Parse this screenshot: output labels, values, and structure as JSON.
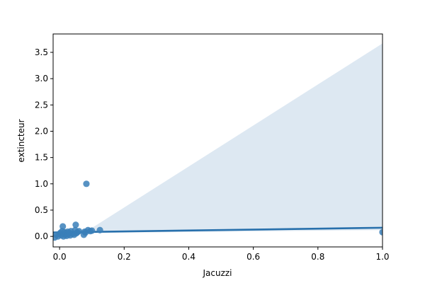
{
  "chart_data": {
    "type": "scatter",
    "title": "",
    "xlabel": "Jacuzzi",
    "ylabel": "extincteur",
    "xlim": [
      -0.02,
      1.0
    ],
    "ylim": [
      -0.2,
      3.85
    ],
    "xticks": [
      0.0,
      0.2,
      0.4,
      0.6,
      0.8,
      1.0
    ],
    "xtick_labels": [
      "0.0",
      "0.2",
      "0.4",
      "0.6",
      "0.8",
      "1.0"
    ],
    "yticks": [
      0.0,
      0.5,
      1.0,
      1.5,
      2.0,
      2.5,
      3.0,
      3.5
    ],
    "ytick_labels": [
      "0.0",
      "0.5",
      "1.0",
      "1.5",
      "2.0",
      "2.5",
      "3.0",
      "3.5"
    ],
    "grid": false,
    "colors": {
      "points": "#3a7fb8",
      "line": "#2870ac",
      "band": "#dbe7f1"
    },
    "regression": {
      "x": [
        -0.02,
        1.0
      ],
      "y": [
        0.075,
        0.165
      ]
    },
    "confidence_band": {
      "x": [
        -0.02,
        0.1,
        1.0
      ],
      "upper": [
        0.055,
        0.16,
        3.67
      ],
      "lower": [
        0.04,
        0.065,
        0.12
      ]
    },
    "points": [
      {
        "x": -0.015,
        "y": -0.02
      },
      {
        "x": -0.01,
        "y": 0.03
      },
      {
        "x": -0.005,
        "y": 0.0
      },
      {
        "x": 0.0,
        "y": 0.05
      },
      {
        "x": 0.003,
        "y": 0.07
      },
      {
        "x": 0.005,
        "y": 0.02
      },
      {
        "x": 0.008,
        "y": 0.1
      },
      {
        "x": 0.01,
        "y": 0.19
      },
      {
        "x": 0.012,
        "y": 0.0
      },
      {
        "x": 0.014,
        "y": 0.04
      },
      {
        "x": 0.016,
        "y": 0.08
      },
      {
        "x": 0.018,
        "y": 0.03
      },
      {
        "x": 0.02,
        "y": 0.06
      },
      {
        "x": 0.022,
        "y": 0.01
      },
      {
        "x": 0.025,
        "y": 0.09
      },
      {
        "x": 0.027,
        "y": 0.04
      },
      {
        "x": 0.03,
        "y": 0.07
      },
      {
        "x": 0.033,
        "y": 0.02
      },
      {
        "x": 0.035,
        "y": 0.1
      },
      {
        "x": 0.04,
        "y": 0.05
      },
      {
        "x": 0.045,
        "y": 0.03
      },
      {
        "x": 0.048,
        "y": 0.12
      },
      {
        "x": 0.05,
        "y": 0.22
      },
      {
        "x": 0.052,
        "y": 0.06
      },
      {
        "x": 0.055,
        "y": 0.08
      },
      {
        "x": 0.06,
        "y": 0.1
      },
      {
        "x": 0.075,
        "y": 0.03
      },
      {
        "x": 0.078,
        "y": 0.09
      },
      {
        "x": 0.08,
        "y": 0.07
      },
      {
        "x": 0.083,
        "y": 1.0
      },
      {
        "x": 0.088,
        "y": 0.12
      },
      {
        "x": 0.095,
        "y": 0.1
      },
      {
        "x": 0.1,
        "y": 0.11
      },
      {
        "x": 0.125,
        "y": 0.12
      },
      {
        "x": 1.0,
        "y": 0.08
      }
    ]
  }
}
